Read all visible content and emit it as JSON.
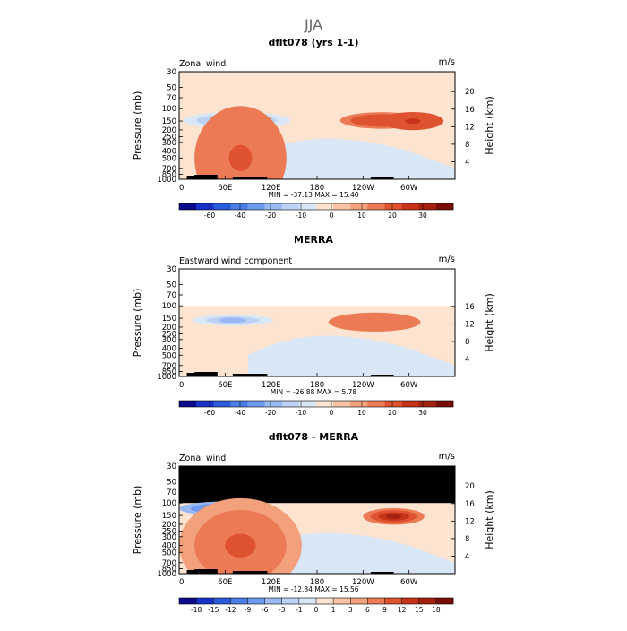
{
  "figure_title": "JJA",
  "chart_data": [
    {
      "type": "heatmap",
      "title": "dflt078 (yrs 1-1)",
      "left_label": "Zonal wind",
      "units": "m/s",
      "ylabel": "Pressure (mb)",
      "ylabel_right": "Height (km)",
      "x_ticks": [
        "0",
        "60E",
        "120E",
        "180",
        "120W",
        "60W"
      ],
      "y_ticks": [
        "30",
        "50",
        "70",
        "100",
        "150",
        "200",
        "250",
        "300",
        "400",
        "500",
        "700",
        "850",
        "1000"
      ],
      "height_ticks": [
        "20",
        "16",
        "12",
        "8",
        "4"
      ],
      "stats": "MIN = -37.13   MAX =  15.40",
      "colorbar": {
        "labels": [
          "-60",
          "-40",
          "-20",
          "-10",
          "0",
          "10",
          "20",
          "30"
        ],
        "colors": [
          "#0a0a8c",
          "#1732c8",
          "#2a5bdc",
          "#4a7ee6",
          "#6f9bee",
          "#98b9f2",
          "#bcd2f4",
          "#d8e6f6",
          "#fde4d0",
          "#f8c4a4",
          "#f3a07c",
          "#eb7a55",
          "#df5230",
          "#c7321a",
          "#a4200f",
          "#7a0e06"
        ]
      },
      "features": [
        {
          "type": "jet",
          "cx": 75,
          "cy": 147,
          "rx": 70,
          "ry": 35,
          "value": -37.13
        },
        {
          "type": "jet",
          "cx": 265,
          "cy": 147,
          "rx": 55,
          "ry": 35,
          "value": 12
        },
        {
          "type": "jet",
          "cx": 305,
          "cy": 150,
          "rx": 40,
          "ry": 38,
          "value": 15.4
        },
        {
          "type": "lowlevel",
          "cx": 80,
          "cy": 500,
          "rx": 60,
          "ry": 220,
          "value": 8
        }
      ]
    },
    {
      "type": "heatmap",
      "title": "MERRA",
      "left_label": "Eastward wind component",
      "units": "m/s",
      "ylabel": "Pressure (mb)",
      "ylabel_right": "Height (km)",
      "x_ticks": [
        "0",
        "60E",
        "120E",
        "180",
        "120W",
        "60W"
      ],
      "y_ticks": [
        "30",
        "50",
        "70",
        "100",
        "150",
        "200",
        "250",
        "300",
        "400",
        "500",
        "700",
        "850",
        "1000"
      ],
      "height_ticks": [
        "16",
        "12",
        "8",
        "4"
      ],
      "stats": "MIN = -26.88   MAX =   5.78",
      "colorbar": {
        "labels": [
          "-60",
          "-40",
          "-20",
          "-10",
          "0",
          "10",
          "20",
          "30"
        ],
        "colors": [
          "#0a0a8c",
          "#1732c8",
          "#2a5bdc",
          "#4a7ee6",
          "#6f9bee",
          "#98b9f2",
          "#bcd2f4",
          "#d8e6f6",
          "#fde4d0",
          "#f8c4a4",
          "#f3a07c",
          "#eb7a55",
          "#df5230",
          "#c7321a",
          "#a4200f",
          "#7a0e06"
        ]
      },
      "data_top_mb": 100,
      "features": [
        {
          "type": "jet",
          "cx": 70,
          "cy": 160,
          "rx": 70,
          "ry": 30,
          "value": -26.88
        },
        {
          "type": "jet",
          "cx": 255,
          "cy": 170,
          "rx": 60,
          "ry": 40,
          "value": 5.78
        }
      ]
    },
    {
      "type": "heatmap",
      "title": "dflt078 - MERRA",
      "left_label": "Zonal wind",
      "units": "m/s",
      "ylabel": "Pressure (mb)",
      "ylabel_right": "Height (km)",
      "x_ticks": [
        "0",
        "60E",
        "120E",
        "180",
        "120W",
        "60W"
      ],
      "y_ticks": [
        "30",
        "50",
        "70",
        "100",
        "150",
        "200",
        "250",
        "300",
        "400",
        "500",
        "700",
        "850",
        "1000"
      ],
      "height_ticks": [
        "20",
        "16",
        "12",
        "8",
        "4"
      ],
      "stats": "MIN = -12.84   MAX =  15.56",
      "colorbar": {
        "labels": [
          "-18",
          "-15",
          "-12",
          "-9",
          "-6",
          "-3",
          "-1",
          "0",
          "1",
          "3",
          "6",
          "9",
          "12",
          "15",
          "18"
        ],
        "colors": [
          "#0a0a8c",
          "#1732c8",
          "#2a5bdc",
          "#4a7ee6",
          "#6f9bee",
          "#98b9f2",
          "#bcd2f4",
          "#d8e6f6",
          "#fde4d0",
          "#f8c4a4",
          "#f3a07c",
          "#eb7a55",
          "#df5230",
          "#c7321a",
          "#a4200f",
          "#7a0e06"
        ]
      },
      "data_top_mb": 100,
      "masked_above_mb": 100,
      "features": [
        {
          "type": "jet",
          "cx": 60,
          "cy": 120,
          "rx": 60,
          "ry": 30,
          "value": -12.84
        },
        {
          "type": "jet",
          "cx": 280,
          "cy": 155,
          "rx": 40,
          "ry": 35,
          "value": 15.56
        },
        {
          "type": "lowlevel",
          "cx": 80,
          "cy": 400,
          "rx": 80,
          "ry": 200,
          "value": 10
        }
      ]
    }
  ]
}
